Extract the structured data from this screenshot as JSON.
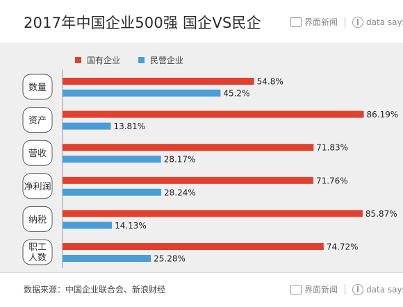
{
  "header": {
    "title": "2017年中国企业500强  国企VS民企"
  },
  "brand": {
    "name": "界面新闻",
    "sub": "data says"
  },
  "footer": {
    "source": "数据来源：中国企业联合会、新浪财经"
  },
  "colors": {
    "state": "#e0412e",
    "private": "#4a9dd6",
    "label_border": "#555555"
  },
  "chart_data": {
    "type": "bar",
    "orientation": "horizontal",
    "title": "2017年中国企业500强  国企VS民企",
    "categories": [
      "数量",
      "资产",
      "营收",
      "净利润",
      "纳税",
      "职工人数"
    ],
    "category_display": [
      [
        "数量"
      ],
      [
        "资产"
      ],
      [
        "营收"
      ],
      [
        "净利润"
      ],
      [
        "纳税"
      ],
      [
        "职工",
        "人数"
      ]
    ],
    "series": [
      {
        "name": "国有企业",
        "values": [
          54.8,
          86.19,
          71.83,
          71.76,
          85.87,
          74.72
        ],
        "labels": [
          "54.8%",
          "86.19%",
          "71.83%",
          "71.76%",
          "85.87%",
          "74.72%"
        ]
      },
      {
        "name": "民营企业",
        "values": [
          45.2,
          13.81,
          28.17,
          28.24,
          14.13,
          25.28
        ],
        "labels": [
          "45.2%",
          "13.81%",
          "28.17%",
          "28.24%",
          "14.13%",
          "25.28%"
        ]
      }
    ],
    "unit": "%",
    "xlim": [
      0,
      100
    ],
    "legend_position": "top-left",
    "grid": false
  }
}
